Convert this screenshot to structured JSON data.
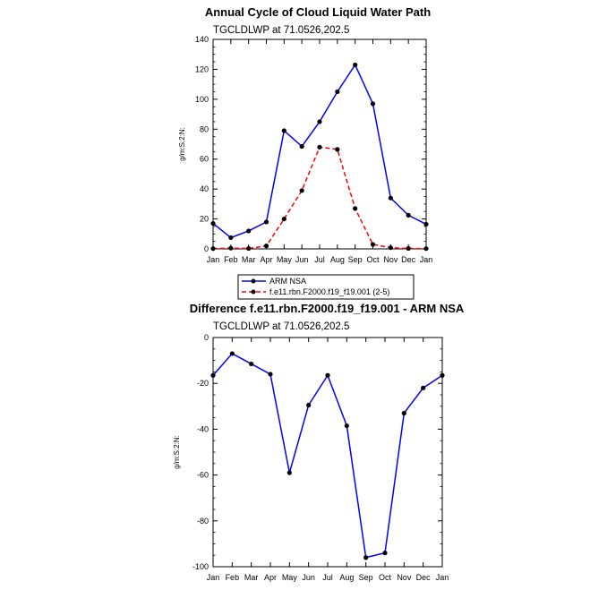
{
  "chart_data": [
    {
      "type": "line",
      "title": "Annual Cycle of Cloud Liquid Water Path",
      "subtitle": "TGCLDLWP at 71.0526,202.5",
      "ylabel": "g/m:S:2:N:",
      "xlabel": "",
      "categories": [
        "Jan",
        "Feb",
        "Mar",
        "Apr",
        "May",
        "Jun",
        "Jul",
        "Aug",
        "Sep",
        "Oct",
        "Nov",
        "Dec",
        "Jan"
      ],
      "ylim": [
        0,
        140
      ],
      "yticks": [
        0,
        20,
        40,
        60,
        80,
        100,
        120,
        140
      ],
      "ytick_labels": [
        "0",
        "20",
        "40",
        "60",
        "80",
        "100",
        "120",
        "140"
      ],
      "series": [
        {
          "name": "ARM NSA",
          "values": [
            17,
            7.5,
            12,
            18,
            79,
            68.5,
            85,
            105,
            123,
            97,
            34,
            22.5,
            16.5
          ],
          "color": "#0000ff",
          "dash": "solid"
        },
        {
          "name": "f.e11.rbn.F2000.f19_f19.001 (2-5)",
          "values": [
            0.2,
            0.5,
            0.3,
            2,
            20,
            39,
            68,
            66.5,
            27,
            3,
            0.8,
            0.3,
            0.2
          ],
          "color": "#ff0000",
          "dash": "dashed"
        }
      ],
      "legend": "bottom"
    },
    {
      "type": "line",
      "title": "Difference f.e11.rbn.F2000.f19_f19.001 - ARM NSA",
      "subtitle": "TGCLDLWP at 71.0526,202.5",
      "ylabel": "g/m:S:2:N:",
      "xlabel": "",
      "categories": [
        "Jan",
        "Feb",
        "Mar",
        "Apr",
        "May",
        "Jun",
        "Jul",
        "Aug",
        "Sep",
        "Oct",
        "Nov",
        "Dec",
        "Jan"
      ],
      "ylim": [
        -100,
        0
      ],
      "yticks": [
        0,
        -20,
        -40,
        -60,
        -80,
        -100
      ],
      "ytick_labels": [
        "0",
        "-20",
        "-40",
        "-60",
        "-80",
        "-100"
      ],
      "series": [
        {
          "values": [
            -16.5,
            -7,
            -11.5,
            -16,
            -59,
            -29.5,
            -16.5,
            -38.5,
            -96,
            -94,
            -33,
            -22,
            -16.5
          ],
          "color": "#0000ff",
          "dash": "solid"
        }
      ]
    }
  ]
}
